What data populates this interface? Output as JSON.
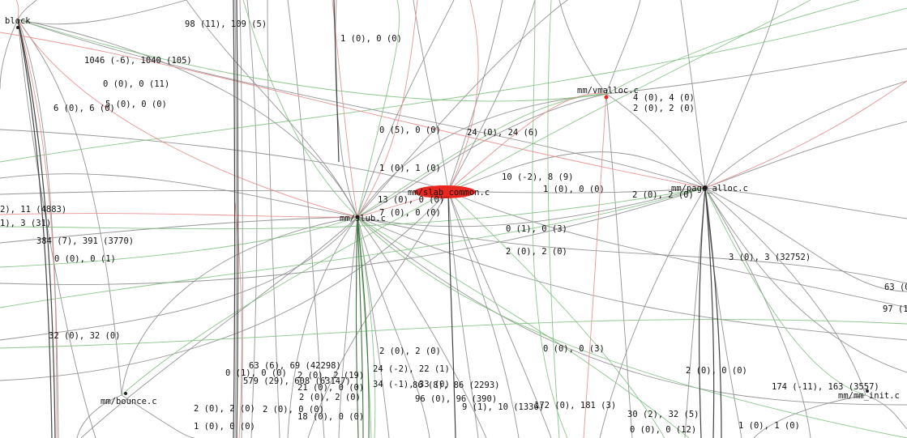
{
  "nodes": {
    "block": "block",
    "slub": "mm/slub.c",
    "slab_common": "mm/slab_common.c",
    "vmalloc": "mm/vmalloc.c",
    "page_alloc": "mm/page_alloc.c",
    "bounce": "mm/bounce.c",
    "mm_init": "mm/mm_init.c"
  },
  "colors": {
    "edge_gray": "#8a8a8a",
    "edge_green": "#7fbf7f",
    "edge_red": "#e88a8a",
    "node_red": "#e8281e"
  },
  "edge_labels": [
    "98 (11), 109 (5)",
    "1 (0), 0 (0)",
    "1046 (-6), 1040 (105)",
    "0 (0), 0 (11)",
    "6 (0), 6 (0)",
    "5 (0), 0 (0)",
    "4 (0), 4 (0)",
    "2 (0), 2 (0)",
    "0 (5), 0 (0)",
    "24 (0), 24 (6)",
    "1 (0), 1 (0)",
    "10 (-2), 8 (9)",
    "1 (0), 0 (0)",
    "2 (0), 2 (0)",
    "2), 11 (4883)",
    "13 (0), 0 (0)",
    "7 (0), 0 (0)",
    "1), 3 (31)",
    "384 (7), 391 (3770)",
    "0 (1), 0 (3)",
    "0 (0), 0 (1)",
    "2 (0), 2 (0)",
    "3 (0), 3 (32752)",
    "63 (0)",
    "97 (1",
    "32 (0), 32 (0)",
    "2 (0), 2 (0)",
    "0 (0), 0 (3)",
    "63 (6), 69 (42298)",
    "24 (-2), 22 (1)",
    "0 (1), 0 (0)",
    "2 (0), 2 (19)",
    "579 (29), 608 (63147)",
    "34 (-1), 33 (0)",
    "86 (8), 86 (2293)",
    "21 (0), 0 (0)",
    "2 (0), 0 (0)",
    "2 (0), 2 (0)",
    "96 (0), 96 (390)",
    "174 (-11), 163 (3557)",
    "9 (1), 10 (1336)",
    "172 (0), 181 (3)",
    "2 (0), 2 (0)",
    "2 (0), 0 (0)",
    "18 (0), 0 (0)",
    "30 (2), 32 (5)",
    "1 (0), 0 (0)",
    "0 (0), 0 (12)",
    "1 (0), 1 (0)"
  ]
}
